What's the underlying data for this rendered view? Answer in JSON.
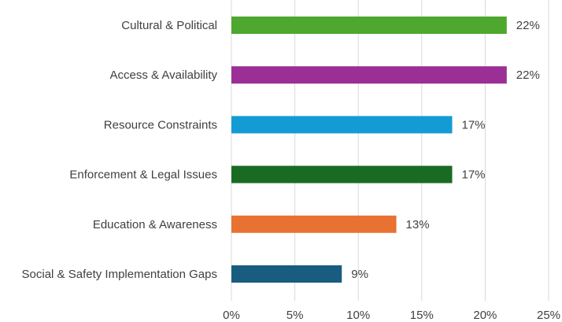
{
  "chart_data": {
    "type": "bar",
    "orientation": "horizontal",
    "title": "",
    "xlabel": "",
    "ylabel": "",
    "xlim": [
      0,
      25
    ],
    "grid": true,
    "x_ticks": [
      "0%",
      "5%",
      "10%",
      "15%",
      "20%",
      "25%"
    ],
    "categories": [
      "Cultural & Political",
      "Access & Availability",
      "Resource Constraints",
      "Enforcement & Legal Issues",
      "Education & Awareness",
      "Social & Safety Implementation Gaps"
    ],
    "values": [
      21.7,
      21.7,
      17.4,
      17.4,
      13.0,
      8.7
    ],
    "value_labels": [
      "22%",
      "22%",
      "17%",
      "17%",
      "13%",
      "9%"
    ],
    "colors": [
      "#4ea72e",
      "#9b2f96",
      "#139bd3",
      "#196b24",
      "#e97132",
      "#185d80"
    ]
  }
}
